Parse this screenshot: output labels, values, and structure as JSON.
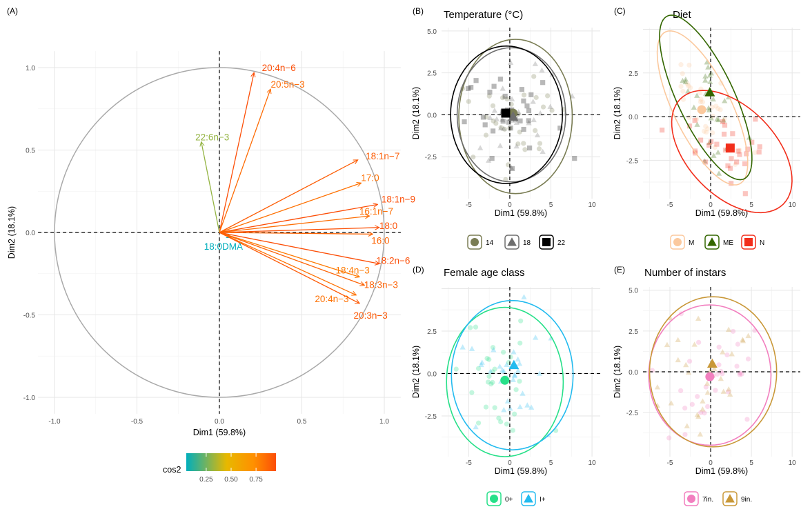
{
  "panel_labels": [
    "(A)",
    "(B)",
    "(C)",
    "(D)",
    "(E)"
  ],
  "colors": {
    "grid": "#ebebeb",
    "circle": "#a8a8a8",
    "cos2_gradient": [
      "#00aebc",
      "#e7b800",
      "#fc4e07"
    ]
  },
  "chart_data": [
    {
      "panel": "(A)",
      "type": "scatter",
      "subtype": "pca-variable-correlation-circle",
      "xlabel": "Dim1 (59.8%)",
      "ylabel": "Dim2 (18.1%)",
      "xlim": [
        -1.1,
        1.1
      ],
      "ylim": [
        -1.1,
        1.1
      ],
      "xticks": [
        "-1.0",
        "-0.5",
        "0.0",
        "0.5",
        "1.0"
      ],
      "yticks": [
        "-1.0",
        "-0.5",
        "0.0",
        "0.5",
        "1.0"
      ],
      "grid": true,
      "legend": {
        "title": "cos2",
        "placement": "bottom",
        "ticks": [
          "0.25",
          "0.50",
          "0.75"
        ],
        "range": [
          0.05,
          0.95
        ]
      },
      "variables": [
        {
          "label": "20:4n−6",
          "x": 0.21,
          "y": 0.97,
          "cos2": 0.95
        },
        {
          "label": "20:5n−3",
          "x": 0.31,
          "y": 0.87,
          "cos2": 0.85
        },
        {
          "label": "22:6n−3",
          "x": -0.11,
          "y": 0.55,
          "cos2": 0.31
        },
        {
          "label": "18:1n−7",
          "x": 0.84,
          "y": 0.44,
          "cos2": 0.9
        },
        {
          "label": "17:0",
          "x": 0.86,
          "y": 0.3,
          "cos2": 0.83
        },
        {
          "label": "18:1n−9",
          "x": 0.96,
          "y": 0.17,
          "cos2": 0.95
        },
        {
          "label": "16:1n−7",
          "x": 0.91,
          "y": 0.1,
          "cos2": 0.84
        },
        {
          "label": "18:0",
          "x": 0.97,
          "y": 0.03,
          "cos2": 0.94
        },
        {
          "label": "16:0",
          "x": 0.93,
          "y": -0.01,
          "cos2": 0.87
        },
        {
          "label": "18:0DMA",
          "x": 0.07,
          "y": -0.03,
          "cos2": 0.05
        },
        {
          "label": "18:2n−6",
          "x": 0.97,
          "y": -0.19,
          "cos2": 0.95
        },
        {
          "label": "18:4n−3",
          "x": 0.85,
          "y": -0.27,
          "cos2": 0.8
        },
        {
          "label": "18:3n−3",
          "x": 0.88,
          "y": -0.32,
          "cos2": 0.88
        },
        {
          "label": "20:4n−3",
          "x": 0.83,
          "y": -0.38,
          "cos2": 0.83
        },
        {
          "label": "20:3n−3",
          "x": 0.85,
          "y": -0.43,
          "cos2": 0.91
        }
      ]
    },
    {
      "panel": "(B)",
      "type": "scatter",
      "title": "Temperature (°C)",
      "xlabel": "Dim1 (59.8%)",
      "ylabel": "Dim2 (18.1%)",
      "xlim": [
        -8.3,
        11.0
      ],
      "ylim": [
        -5.0,
        5.2
      ],
      "xticks": [
        "-5",
        "0",
        "5",
        "10"
      ],
      "yticks": [
        "5.0",
        "2.5",
        "0.0",
        "-2.5"
      ],
      "legend_placement": "bottom",
      "groups": [
        {
          "label": "14",
          "color": "#7a7d54",
          "shape": "circle",
          "centroid": [
            0.4,
            0.1
          ],
          "ellipse": {
            "cx": 0.7,
            "cy": -0.1,
            "rx": 6.9,
            "ry": 4.6
          }
        },
        {
          "label": "18",
          "color": "#6e6e6e",
          "shape": "triangle",
          "centroid": [
            0.4,
            -0.1
          ],
          "ellipse": {
            "cx": 0.2,
            "cy": 0.0,
            "rx": 6.6,
            "ry": 4.0
          }
        },
        {
          "label": "22",
          "color": "#000000",
          "shape": "square",
          "centroid": [
            -0.5,
            0.1
          ],
          "ellipse": {
            "cx": -0.4,
            "cy": 0.0,
            "rx": 6.8,
            "ry": 4.1
          }
        }
      ]
    },
    {
      "panel": "(C)",
      "type": "scatter",
      "title": "Diet",
      "xlabel": "Dim1 (59.8%)",
      "ylabel": "Dim2 (18.1%)",
      "xlim": [
        -8.3,
        11.0
      ],
      "ylim": [
        -4.7,
        5.1
      ],
      "xticks": [
        "-5",
        "0",
        "5",
        "10"
      ],
      "yticks": [
        "2.5",
        "0.0",
        "-2.5"
      ],
      "legend_placement": "bottom",
      "groups": [
        {
          "label": "M",
          "color": "#fbc99e",
          "shape": "circle",
          "centroid": [
            -1.1,
            0.4
          ],
          "ellipse": {
            "cx": -1.0,
            "cy": 0.5,
            "rx": 6.6,
            "ry": 2.6,
            "angle": -36
          }
        },
        {
          "label": "ME",
          "color": "#336600",
          "shape": "triangle",
          "centroid": [
            -0.1,
            1.4
          ],
          "ellipse": {
            "cx": -0.6,
            "cy": 1.1,
            "rx": 6.9,
            "ry": 2.6,
            "angle": -38
          }
        },
        {
          "label": "N",
          "color": "#f22e1b",
          "shape": "square",
          "centroid": [
            2.4,
            -1.8
          ],
          "ellipse": {
            "cx": 2.6,
            "cy": -2.0,
            "rx": 7.6,
            "ry": 3.0,
            "angle": -15
          }
        }
      ]
    },
    {
      "panel": "(D)",
      "type": "scatter",
      "title": "Female age class",
      "xlabel": "Dim1 (59.8%)",
      "ylabel": "Dim2 (18.1%)",
      "xlim": [
        -8.3,
        11.0
      ],
      "ylim": [
        -4.9,
        5.1
      ],
      "xticks": [
        "-5",
        "0",
        "5",
        "10"
      ],
      "yticks": [
        "2.5",
        "0.0",
        "-2.5"
      ],
      "legend_placement": "bottom",
      "groups": [
        {
          "label": "0+",
          "color": "#27e089",
          "shape": "circle",
          "centroid": [
            -0.6,
            -0.4
          ],
          "ellipse": {
            "cx": -0.6,
            "cy": -0.5,
            "rx": 7.1,
            "ry": 4.4
          }
        },
        {
          "label": "I+",
          "color": "#23bbef",
          "shape": "triangle",
          "centroid": [
            0.5,
            0.5
          ],
          "ellipse": {
            "cx": 0.3,
            "cy": -0.1,
            "rx": 7.4,
            "ry": 4.4
          }
        }
      ]
    },
    {
      "panel": "(E)",
      "type": "scatter",
      "title": "Number of instars",
      "xlabel": "Dim1 (59.8%)",
      "ylabel": "Dim2 (18.1%)",
      "xlim": [
        -8.3,
        11.0
      ],
      "ylim": [
        -5.2,
        5.2
      ],
      "xticks": [
        "-5",
        "0",
        "5",
        "10"
      ],
      "yticks": [
        "5.0",
        "2.5",
        "0.0",
        "-2.5"
      ],
      "legend_placement": "bottom",
      "groups": [
        {
          "label": "7in.",
          "color": "#f27fbf",
          "shape": "circle",
          "centroid": [
            -0.1,
            -0.3
          ],
          "ellipse": {
            "cx": -0.1,
            "cy": -0.2,
            "rx": 7.5,
            "ry": 4.3
          }
        },
        {
          "label": "9in.",
          "color": "#c99838",
          "shape": "triangle",
          "centroid": [
            0.2,
            0.5
          ],
          "ellipse": {
            "cx": 0.3,
            "cy": 0.0,
            "rx": 7.8,
            "ry": 4.6
          }
        }
      ]
    }
  ]
}
